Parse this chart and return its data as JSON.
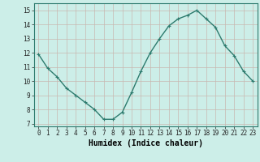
{
  "x": [
    0,
    1,
    2,
    3,
    4,
    5,
    6,
    7,
    8,
    9,
    10,
    11,
    12,
    13,
    14,
    15,
    16,
    17,
    18,
    19,
    20,
    21,
    22,
    23
  ],
  "y": [
    11.9,
    10.9,
    10.3,
    9.5,
    9.0,
    8.5,
    8.0,
    7.3,
    7.3,
    7.8,
    9.2,
    10.7,
    12.0,
    13.0,
    13.9,
    14.4,
    14.65,
    15.0,
    14.4,
    13.8,
    12.5,
    11.8,
    10.7,
    10.0
  ],
  "line_color": "#2d7b6e",
  "marker": "+",
  "marker_size": 3,
  "background_color": "#cceee8",
  "grid_color": "#c8b8b0",
  "xlabel": "Humidex (Indice chaleur)",
  "xlabel_fontsize": 7,
  "xlim": [
    -0.5,
    23.5
  ],
  "ylim": [
    6.8,
    15.5
  ],
  "yticks": [
    7,
    8,
    9,
    10,
    11,
    12,
    13,
    14,
    15
  ],
  "xticks": [
    0,
    1,
    2,
    3,
    4,
    5,
    6,
    7,
    8,
    9,
    10,
    11,
    12,
    13,
    14,
    15,
    16,
    17,
    18,
    19,
    20,
    21,
    22,
    23
  ],
  "tick_fontsize": 5.5,
  "linewidth": 1.0
}
